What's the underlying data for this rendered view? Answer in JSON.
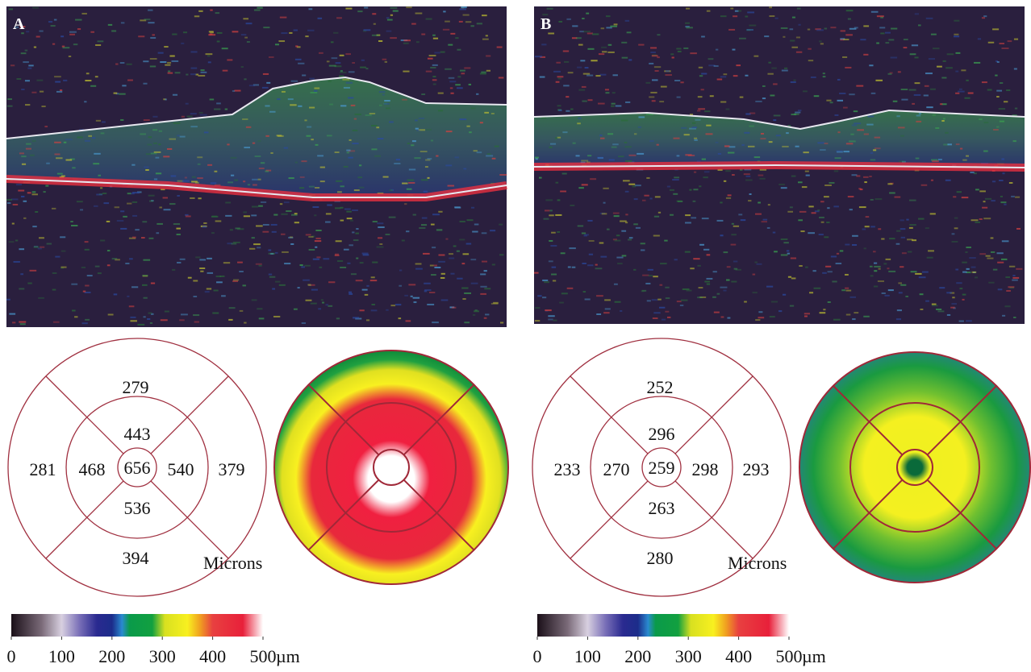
{
  "panels": [
    {
      "label": "A",
      "thickness_map": {
        "center": 656,
        "inner_top": 443,
        "inner_left": 468,
        "inner_right": 540,
        "inner_bottom": 536,
        "outer_top": 279,
        "outer_left": 281,
        "outer_right": 379,
        "outer_bottom": 394
      },
      "unit_label": "Microns"
    },
    {
      "label": "B",
      "thickness_map": {
        "center": 259,
        "inner_top": 296,
        "inner_left": 270,
        "inner_right": 298,
        "inner_bottom": 263,
        "outer_top": 252,
        "outer_left": 233,
        "outer_right": 293,
        "outer_bottom": 280
      },
      "unit_label": "Microns"
    }
  ],
  "color_scale": {
    "ticks": [
      0,
      100,
      200,
      300,
      400,
      500
    ],
    "unit": "µm"
  }
}
